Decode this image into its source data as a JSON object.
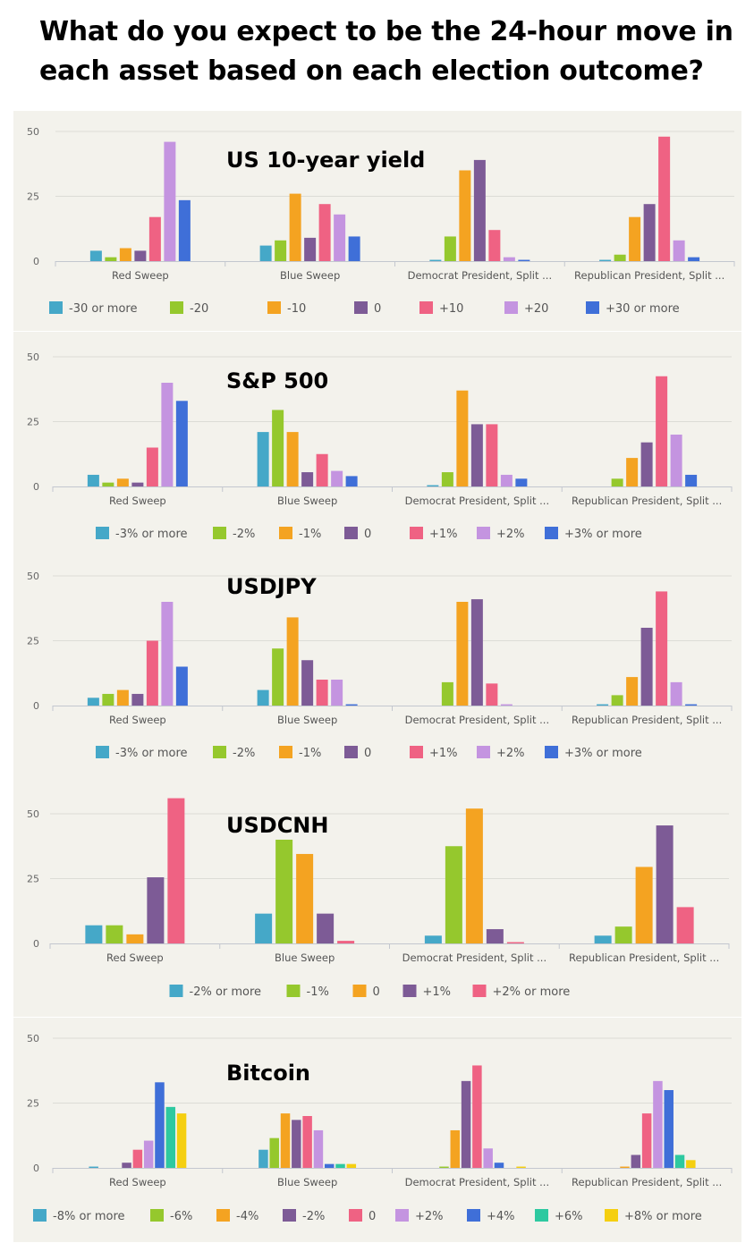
{
  "headline": "What do you expect to be the 24-hour move in each asset based on each election outcome?",
  "chart_data": [
    {
      "type": "bar",
      "title": "US 10-year yield",
      "categories": [
        "Red Sweep",
        "Blue Sweep",
        "Democrat President, Split ...",
        "Republican President, Split ..."
      ],
      "yticks": [
        0,
        25,
        50
      ],
      "ylim": [
        0,
        50
      ],
      "grid": true,
      "legend_position": "bottom",
      "series": [
        {
          "name": "-30 or more",
          "color": "#45a8c8",
          "values": [
            4,
            6,
            0.5,
            0.5
          ]
        },
        {
          "name": "-20",
          "color": "#95c82d",
          "values": [
            1.5,
            8,
            9.5,
            2.5
          ]
        },
        {
          "name": "-10",
          "color": "#f4a321",
          "values": [
            5,
            26,
            35,
            17
          ]
        },
        {
          "name": "0",
          "color": "#7d5b96",
          "values": [
            4,
            9,
            39,
            22
          ]
        },
        {
          "name": "+10",
          "color": "#ef6283",
          "values": [
            17,
            22,
            12,
            48
          ]
        },
        {
          "name": "+20",
          "color": "#c494e0",
          "values": [
            46,
            18,
            1.5,
            8
          ]
        },
        {
          "name": "+30 or more",
          "color": "#3f6fd8",
          "values": [
            23.5,
            9.5,
            0.5,
            1.5
          ]
        }
      ]
    },
    {
      "type": "bar",
      "title": "S&P 500",
      "categories": [
        "Red Sweep",
        "Blue Sweep",
        "Democrat President, Split ...",
        "Republican President, Split ..."
      ],
      "yticks": [
        0,
        25,
        50
      ],
      "ylim": [
        0,
        50
      ],
      "grid": true,
      "legend_position": "bottom",
      "series": [
        {
          "name": "-3% or more",
          "color": "#45a8c8",
          "values": [
            4.5,
            21,
            0.5,
            0
          ]
        },
        {
          "name": "-2%",
          "color": "#95c82d",
          "values": [
            1.5,
            29.5,
            5.5,
            3
          ]
        },
        {
          "name": "-1%",
          "color": "#f4a321",
          "values": [
            3,
            21,
            37,
            11
          ]
        },
        {
          "name": "0",
          "color": "#7d5b96",
          "values": [
            1.5,
            5.5,
            24,
            17
          ]
        },
        {
          "name": "+1%",
          "color": "#ef6283",
          "values": [
            15,
            12.5,
            24,
            42.5
          ]
        },
        {
          "name": "+2%",
          "color": "#c494e0",
          "values": [
            40,
            6,
            4.5,
            20
          ]
        },
        {
          "name": "+3% or more",
          "color": "#3f6fd8",
          "values": [
            33,
            4,
            3,
            4.5
          ]
        }
      ]
    },
    {
      "type": "bar",
      "title": "USDJPY",
      "categories": [
        "Red Sweep",
        "Blue Sweep",
        "Democrat President, Split ...",
        "Republican President, Split ..."
      ],
      "yticks": [
        0,
        25,
        50
      ],
      "ylim": [
        0,
        50
      ],
      "grid": true,
      "legend_position": "bottom",
      "series": [
        {
          "name": "-3% or more",
          "color": "#45a8c8",
          "values": [
            3,
            6,
            0,
            0.5
          ]
        },
        {
          "name": "-2%",
          "color": "#95c82d",
          "values": [
            4.5,
            22,
            9,
            4
          ]
        },
        {
          "name": "-1%",
          "color": "#f4a321",
          "values": [
            6,
            34,
            40,
            11
          ]
        },
        {
          "name": "0",
          "color": "#7d5b96",
          "values": [
            4.5,
            17.5,
            41,
            30
          ]
        },
        {
          "name": "+1%",
          "color": "#ef6283",
          "values": [
            25,
            10,
            8.5,
            44
          ]
        },
        {
          "name": "+2%",
          "color": "#c494e0",
          "values": [
            40,
            10,
            0.5,
            9
          ]
        },
        {
          "name": "+3% or more",
          "color": "#3f6fd8",
          "values": [
            15,
            0.5,
            0,
            0.5
          ]
        }
      ]
    },
    {
      "type": "bar",
      "title": "USDCNH",
      "categories": [
        "Red Sweep",
        "Blue Sweep",
        "Democrat President, Split ...",
        "Republican President, Split ..."
      ],
      "yticks": [
        0,
        25,
        50
      ],
      "ylim": [
        0,
        56
      ],
      "grid": true,
      "legend_position": "bottom",
      "series": [
        {
          "name": "-2% or more",
          "color": "#45a8c8",
          "values": [
            7,
            11.5,
            3,
            3
          ]
        },
        {
          "name": "-1%",
          "color": "#95c82d",
          "values": [
            7,
            40,
            37.5,
            6.5
          ]
        },
        {
          "name": "0",
          "color": "#f4a321",
          "values": [
            3.5,
            34.5,
            52,
            29.5
          ]
        },
        {
          "name": "+1%",
          "color": "#7d5b96",
          "values": [
            25.5,
            11.5,
            5.5,
            45.5
          ]
        },
        {
          "name": "+2% or more",
          "color": "#ef6283",
          "values": [
            56,
            1,
            0.5,
            14
          ]
        }
      ]
    },
    {
      "type": "bar",
      "title": "Bitcoin",
      "categories": [
        "Red Sweep",
        "Blue Sweep",
        "Democrat President, Split ...",
        "Republican President, Split ..."
      ],
      "yticks": [
        0,
        25,
        50
      ],
      "ylim": [
        0,
        50
      ],
      "grid": true,
      "legend_position": "bottom",
      "series": [
        {
          "name": "-8% or more",
          "color": "#45a8c8",
          "values": [
            0.5,
            7,
            0,
            0
          ]
        },
        {
          "name": "-6%",
          "color": "#95c82d",
          "values": [
            0,
            11.5,
            0.5,
            0
          ]
        },
        {
          "name": "-4%",
          "color": "#f4a321",
          "values": [
            0,
            21,
            14.5,
            0.5
          ]
        },
        {
          "name": "-2%",
          "color": "#7d5b96",
          "values": [
            2,
            18.5,
            33.5,
            5
          ]
        },
        {
          "name": "0",
          "color": "#ef6283",
          "values": [
            7,
            20,
            39.5,
            21
          ]
        },
        {
          "name": "+2%",
          "color": "#c494e0",
          "values": [
            10.5,
            14.5,
            7.5,
            33.5
          ]
        },
        {
          "name": "+4%",
          "color": "#3f6fd8",
          "values": [
            33,
            1.5,
            2,
            30
          ]
        },
        {
          "name": "+6%",
          "color": "#2ec9a0",
          "values": [
            23.5,
            1.5,
            0,
            5
          ]
        },
        {
          "name": "+8% or more",
          "color": "#f5cf10",
          "values": [
            21,
            1.5,
            0.5,
            3
          ]
        }
      ]
    }
  ]
}
